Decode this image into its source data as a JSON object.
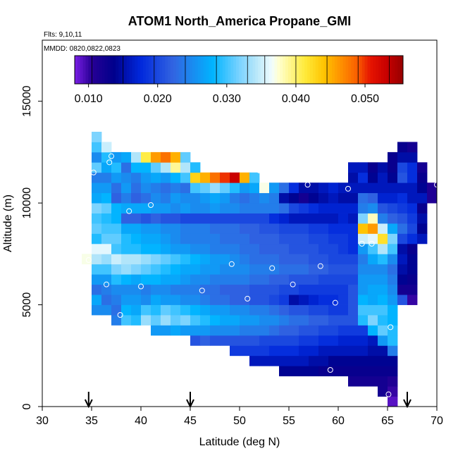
{
  "chart_data": {
    "type": "heatmap",
    "title": "ATOM1 North_America Propane_GMI",
    "annotations": {
      "flights": "Flts: 9,10,11",
      "dates": "MMDD: 0820,0822,0823"
    },
    "xlabel": "Latitude (deg N)",
    "ylabel": "Altitude (m)",
    "xlim": [
      30,
      70
    ],
    "ylim": [
      0,
      18000
    ],
    "xticks": [
      "30",
      "35",
      "40",
      "45",
      "50",
      "55",
      "60",
      "65",
      "70"
    ],
    "yticks": [
      "0",
      "5000",
      "10000",
      "15000"
    ],
    "colorbar": {
      "range": [
        0.008,
        0.0555
      ],
      "ticks": [
        "0.010",
        "0.020",
        "0.030",
        "0.040",
        "0.050"
      ],
      "tick_values": [
        0.01,
        0.02,
        0.03,
        0.04,
        0.05
      ],
      "boundaries": [
        0.0105,
        0.015,
        0.0195,
        0.024,
        0.0285,
        0.033,
        0.0355,
        0.04,
        0.0445,
        0.049,
        0.0535
      ]
    },
    "cell": {
      "dlat": 1.0,
      "dalt": 500
    },
    "columns": [
      {
        "lat": 34.5,
        "alt0": 7000,
        "values": [
          0.037
        ]
      },
      {
        "lat": 35.5,
        "alt0": 4500,
        "values": [
          0.025,
          0.027,
          0.023,
          0.026,
          0.03,
          0.034,
          0.036,
          0.029,
          0.031,
          0.03,
          0.032,
          0.027,
          0.026,
          0.024,
          0.031,
          0.025,
          0.03,
          0.032
        ]
      },
      {
        "lat": 36.5,
        "alt0": 4500,
        "values": [
          0.025,
          0.023,
          0.024,
          0.026,
          0.03,
          0.033,
          0.036,
          0.031,
          0.03,
          0.029,
          0.031,
          0.028,
          0.026,
          0.024,
          0.027,
          0.029,
          0.035
        ]
      },
      {
        "lat": 37.5,
        "alt0": 4000,
        "values": [
          0.024,
          0.023,
          0.024,
          0.025,
          0.029,
          0.032,
          0.035,
          0.03,
          0.031,
          0.03,
          0.028,
          0.028,
          0.022,
          0.023,
          0.026,
          0.029,
          0.026
        ]
      },
      {
        "lat": 38.5,
        "alt0": 4000,
        "values": [
          0.03,
          0.028,
          0.026,
          0.025,
          0.028,
          0.033,
          0.034,
          0.029,
          0.029,
          0.027,
          0.022,
          0.027,
          0.024,
          0.026,
          0.025,
          0.023,
          0.027
        ]
      },
      {
        "lat": 39.5,
        "alt0": 4000,
        "values": [
          0.029,
          0.027,
          0.026,
          0.025,
          0.027,
          0.032,
          0.034,
          0.029,
          0.028,
          0.027,
          0.022,
          0.027,
          0.022,
          0.023,
          0.024,
          0.028,
          0.034
        ]
      },
      {
        "lat": 40.5,
        "alt0": 4000,
        "values": [
          0.033,
          0.03,
          0.025,
          0.024,
          0.028,
          0.031,
          0.033,
          0.028,
          0.027,
          0.026,
          0.021,
          0.027,
          0.023,
          0.025,
          0.026,
          0.028,
          0.041
        ]
      },
      {
        "lat": 41.5,
        "alt0": 3500,
        "values": [
          0.026,
          0.031,
          0.029,
          0.027,
          0.025,
          0.028,
          0.03,
          0.032,
          0.028,
          0.027,
          0.026,
          0.022,
          0.026,
          0.025,
          0.024,
          0.027,
          0.031,
          0.046
        ]
      },
      {
        "lat": 42.5,
        "alt0": 3500,
        "values": [
          0.026,
          0.033,
          0.031,
          0.026,
          0.025,
          0.027,
          0.029,
          0.031,
          0.027,
          0.026,
          0.025,
          0.021,
          0.026,
          0.024,
          0.023,
          0.026,
          0.034,
          0.048
        ]
      },
      {
        "lat": 43.5,
        "alt0": 3500,
        "values": [
          0.027,
          0.031,
          0.03,
          0.026,
          0.024,
          0.027,
          0.028,
          0.03,
          0.026,
          0.025,
          0.025,
          0.021,
          0.025,
          0.026,
          0.024,
          0.028,
          0.039,
          0.045
        ]
      },
      {
        "lat": 44.5,
        "alt0": 3500,
        "values": [
          0.026,
          0.032,
          0.029,
          0.025,
          0.024,
          0.026,
          0.027,
          0.029,
          0.026,
          0.024,
          0.024,
          0.02,
          0.026,
          0.025,
          0.023,
          0.03,
          0.034,
          0.031
        ]
      },
      {
        "lat": 45.5,
        "alt0": 3000,
        "values": [
          0.021,
          0.026,
          0.03,
          0.028,
          0.025,
          0.024,
          0.025,
          0.027,
          0.028,
          0.025,
          0.024,
          0.024,
          0.02,
          0.025,
          0.025,
          0.03,
          0.043,
          0.029
        ]
      },
      {
        "lat": 46.5,
        "alt0": 3000,
        "values": [
          0.022,
          0.026,
          0.029,
          0.027,
          0.024,
          0.023,
          0.025,
          0.026,
          0.027,
          0.025,
          0.024,
          0.024,
          0.02,
          0.025,
          0.026,
          0.031,
          0.045
        ]
      },
      {
        "lat": 47.5,
        "alt0": 3000,
        "values": [
          0.021,
          0.025,
          0.028,
          0.026,
          0.023,
          0.023,
          0.024,
          0.026,
          0.026,
          0.024,
          0.024,
          0.023,
          0.02,
          0.026,
          0.027,
          0.033,
          0.048
        ]
      },
      {
        "lat": 48.5,
        "alt0": 3000,
        "values": [
          0.021,
          0.025,
          0.027,
          0.026,
          0.023,
          0.022,
          0.024,
          0.025,
          0.026,
          0.024,
          0.023,
          0.023,
          0.02,
          0.025,
          0.026,
          0.031,
          0.05
        ]
      },
      {
        "lat": 49.5,
        "alt0": 2500,
        "values": [
          0.019,
          0.021,
          0.025,
          0.027,
          0.025,
          0.022,
          0.022,
          0.024,
          0.025,
          0.025,
          0.024,
          0.023,
          0.023,
          0.02,
          0.025,
          0.024,
          0.029,
          0.053
        ]
      },
      {
        "lat": 50.5,
        "alt0": 2500,
        "values": [
          0.019,
          0.021,
          0.024,
          0.026,
          0.025,
          0.022,
          0.022,
          0.024,
          0.025,
          0.024,
          0.023,
          0.023,
          0.022,
          0.02,
          0.024,
          0.023,
          0.026,
          0.045
        ]
      },
      {
        "lat": 51.5,
        "alt0": 2000,
        "values": [
          0.016,
          0.019,
          0.021,
          0.024,
          0.026,
          0.024,
          0.021,
          0.021,
          0.023,
          0.024,
          0.023,
          0.023,
          0.022,
          0.022,
          0.02,
          0.024,
          0.024,
          0.027,
          0.03
        ]
      },
      {
        "lat": 52.5,
        "alt0": 2000,
        "values": [
          0.016,
          0.019,
          0.02,
          0.024,
          0.025,
          0.024,
          0.021,
          0.021,
          0.023,
          0.024,
          0.023,
          0.022,
          0.022,
          0.021,
          0.02,
          0.024,
          0.025,
          0.037
        ]
      },
      {
        "lat": 53.5,
        "alt0": 2000,
        "values": [
          0.016,
          0.018,
          0.02,
          0.023,
          0.025,
          0.023,
          0.02,
          0.021,
          0.022,
          0.024,
          0.023,
          0.022,
          0.022,
          0.021,
          0.018,
          0.024,
          0.024,
          0.026
        ]
      },
      {
        "lat": 54.5,
        "alt0": 1500,
        "values": [
          0.014,
          0.016,
          0.018,
          0.02,
          0.022,
          0.024,
          0.022,
          0.019,
          0.02,
          0.022,
          0.023,
          0.022,
          0.022,
          0.021,
          0.02,
          0.017,
          0.023,
          0.015,
          0.023
        ]
      },
      {
        "lat": 55.5,
        "alt0": 1500,
        "values": [
          0.014,
          0.016,
          0.018,
          0.02,
          0.022,
          0.023,
          0.021,
          0.015,
          0.02,
          0.021,
          0.023,
          0.022,
          0.021,
          0.021,
          0.02,
          0.016,
          0.02,
          0.014,
          0.018
        ]
      },
      {
        "lat": 56.5,
        "alt0": 1500,
        "values": [
          0.014,
          0.016,
          0.017,
          0.019,
          0.021,
          0.023,
          0.021,
          0.016,
          0.019,
          0.021,
          0.023,
          0.022,
          0.021,
          0.021,
          0.02,
          0.016,
          0.019,
          0.012,
          0.015
        ]
      },
      {
        "lat": 57.5,
        "alt0": 1500,
        "values": [
          0.014,
          0.015,
          0.017,
          0.019,
          0.021,
          0.022,
          0.02,
          0.017,
          0.019,
          0.021,
          0.022,
          0.021,
          0.021,
          0.02,
          0.019,
          0.016,
          0.018,
          0.014,
          0.015
        ]
      },
      {
        "lat": 58.5,
        "alt0": 1500,
        "values": [
          0.013,
          0.015,
          0.016,
          0.018,
          0.02,
          0.022,
          0.02,
          0.018,
          0.019,
          0.02,
          0.022,
          0.021,
          0.02,
          0.02,
          0.019,
          0.016,
          0.017,
          0.015,
          0.016
        ]
      },
      {
        "lat": 59.5,
        "alt0": 1500,
        "values": [
          0.013,
          0.014,
          0.016,
          0.018,
          0.02,
          0.021,
          0.019,
          0.018,
          0.019,
          0.02,
          0.021,
          0.02,
          0.02,
          0.019,
          0.018,
          0.016,
          0.017,
          0.016,
          0.017
        ]
      },
      {
        "lat": 60.5,
        "alt0": 1500,
        "values": [
          0.013,
          0.014,
          0.016,
          0.017,
          0.019,
          0.021,
          0.019,
          0.019,
          0.019,
          0.02,
          0.021,
          0.02,
          0.019,
          0.019,
          0.018,
          0.017,
          0.017,
          0.015,
          0.016
        ]
      },
      {
        "lat": 61.5,
        "alt0": 1000,
        "values": [
          0.012,
          0.013,
          0.014,
          0.016,
          0.017,
          0.019,
          0.021,
          0.021,
          0.021,
          0.021,
          0.02,
          0.021,
          0.02,
          0.018,
          0.018,
          0.018,
          0.016,
          0.017,
          0.015,
          0.016,
          0.015,
          0.016
        ]
      },
      {
        "lat": 62.5,
        "alt0": 1000,
        "values": [
          0.012,
          0.013,
          0.014,
          0.016,
          0.017,
          0.019,
          0.029,
          0.03,
          0.028,
          0.026,
          0.026,
          0.025,
          0.024,
          0.026,
          0.035,
          0.044,
          0.032,
          0.024,
          0.023,
          0.016,
          0.018,
          0.016
        ]
      },
      {
        "lat": 63.5,
        "alt0": 1000,
        "values": [
          0.012,
          0.013,
          0.014,
          0.015,
          0.016,
          0.028,
          0.032,
          0.03,
          0.027,
          0.027,
          0.026,
          0.025,
          0.027,
          0.03,
          0.036,
          0.046,
          0.038,
          0.025,
          0.022,
          0.016,
          0.014,
          0.013
        ]
      },
      {
        "lat": 64.5,
        "alt0": 500,
        "values": [
          0.012,
          0.012,
          0.013,
          0.014,
          0.015,
          0.026,
          0.031,
          0.029,
          0.03,
          0.028,
          0.027,
          0.026,
          0.025,
          0.029,
          0.034,
          0.042,
          0.035,
          0.024,
          0.021,
          0.017,
          0.016,
          0.016,
          0.015
        ]
      },
      {
        "lat": 65.5,
        "alt0": 0,
        "values": [
          0.009,
          0.01,
          0.011,
          0.013,
          0.014,
          0.024,
          0.029,
          0.029,
          0.028,
          0.028,
          0.026,
          0.025,
          0.024,
          0.023,
          0.025,
          0.03,
          0.032,
          0.027,
          0.022,
          0.02,
          0.017,
          0.016,
          0.014,
          0.013,
          0.013
        ]
      },
      {
        "lat": 66.5,
        "alt0": 5000,
        "values": [
          0.021,
          0.012,
          0.014,
          0.015,
          0.016,
          0.015,
          0.02,
          0.023,
          0.021,
          0.019,
          0.018,
          0.016,
          0.021,
          0.02,
          0.015,
          0.013
        ]
      },
      {
        "lat": 67.5,
        "alt0": 5000,
        "values": [
          0.01,
          0.012,
          0.013,
          0.014,
          0.014,
          0.013,
          0.018,
          0.02,
          0.019,
          0.018,
          0.016,
          0.016,
          0.018,
          0.018,
          0.015,
          0.012
        ]
      },
      {
        "lat": 68.5,
        "alt0": 8000,
        "values": [
          0.016,
          0.014,
          0.015,
          0.013,
          0.016,
          0.014,
          0.013,
          0.012
        ]
      },
      {
        "lat": 69.5,
        "alt0": 10000,
        "values": [
          0.011,
          0.011
        ]
      }
    ],
    "points": [
      [
        35.2,
        11500
      ],
      [
        36.5,
        6000
      ],
      [
        36.8,
        12000
      ],
      [
        37.0,
        12300
      ],
      [
        37.9,
        4500
      ],
      [
        38.8,
        9600
      ],
      [
        40.0,
        5900
      ],
      [
        41.0,
        9900
      ],
      [
        46.2,
        5700
      ],
      [
        47.0,
        11800
      ],
      [
        49.2,
        7000
      ],
      [
        50.8,
        5300
      ],
      [
        52.0,
        11600
      ],
      [
        53.3,
        6800
      ],
      [
        55.4,
        6000
      ],
      [
        56.9,
        10900
      ],
      [
        58.2,
        6900
      ],
      [
        59.7,
        5100
      ],
      [
        59.2,
        1800
      ],
      [
        61.0,
        10700
      ],
      [
        62.4,
        8000
      ],
      [
        63.4,
        8000
      ],
      [
        65.3,
        3900
      ],
      [
        65.1,
        600
      ],
      [
        34.7,
        7200
      ],
      [
        70.0,
        10900
      ]
    ],
    "arrows_lat": [
      34.7,
      45.0,
      67.0
    ]
  }
}
